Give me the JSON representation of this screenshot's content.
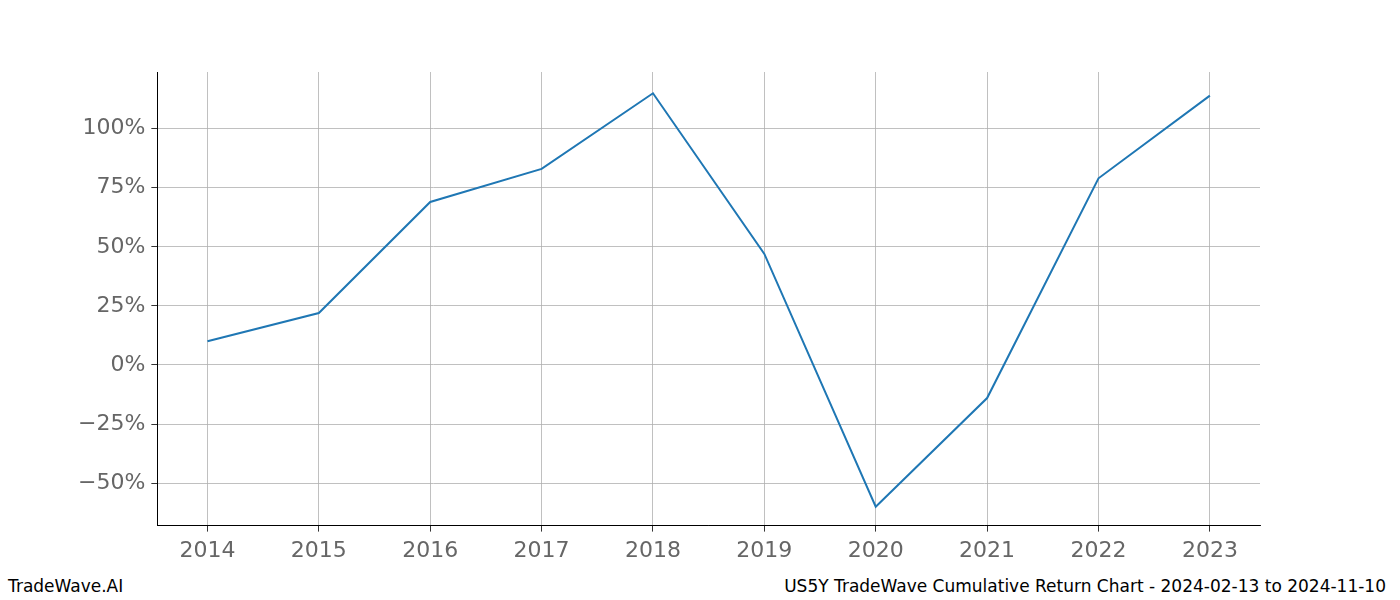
{
  "chart_data": {
    "type": "line",
    "title": "US5Y TradeWave Cumulative Return Chart - 2024-02-13 to 2024-11-10",
    "source": "TradeWave.AI",
    "x": [
      2014,
      2015,
      2016,
      2017,
      2018,
      2019,
      2020,
      2021,
      2022,
      2023
    ],
    "values": [
      10,
      22,
      69,
      83,
      115,
      47,
      -60,
      -14,
      79,
      114
    ],
    "color": "#1f77b4",
    "xlim": [
      2013.55,
      2023.45
    ],
    "xticks": [
      2014,
      2015,
      2016,
      2017,
      2018,
      2019,
      2020,
      2021,
      2022,
      2023
    ],
    "ylim": [
      -68,
      124
    ],
    "yticks": [
      {
        "value": -50,
        "label": "−50%"
      },
      {
        "value": -25,
        "label": "−25%"
      },
      {
        "value": 0,
        "label": "0%"
      },
      {
        "value": 25,
        "label": "25%"
      },
      {
        "value": 50,
        "label": "50%"
      },
      {
        "value": 75,
        "label": "75%"
      },
      {
        "value": 100,
        "label": "100%"
      }
    ],
    "grid": true
  }
}
